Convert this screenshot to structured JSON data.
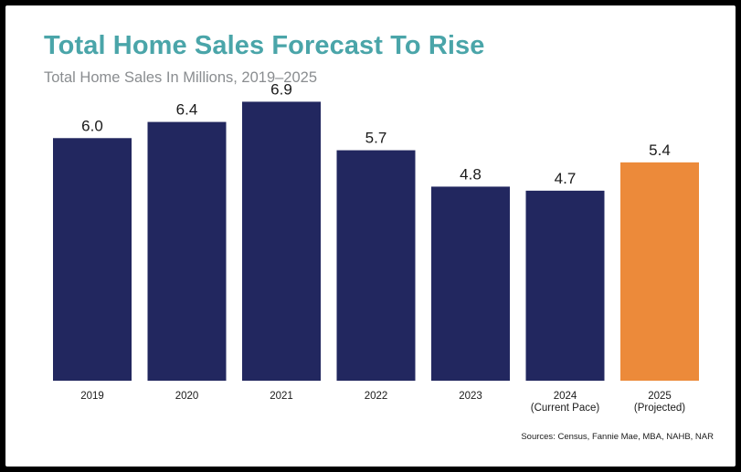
{
  "chart_data": {
    "type": "bar",
    "title": "Total Home Sales Forecast To Rise",
    "subtitle": "Total Home Sales In Millions, 2019–2025",
    "categories": [
      [
        "2019"
      ],
      [
        "2020"
      ],
      [
        "2021"
      ],
      [
        "2022"
      ],
      [
        "2023"
      ],
      [
        "2024",
        "(Current Pace)"
      ],
      [
        "2025",
        "(Projected)"
      ]
    ],
    "values": [
      6.0,
      6.4,
      6.9,
      5.7,
      4.8,
      4.7,
      5.4
    ],
    "value_labels": [
      "6.0",
      "6.4",
      "6.9",
      "5.7",
      "4.8",
      "4.7",
      "5.4"
    ],
    "bar_kinds": [
      "actual",
      "actual",
      "actual",
      "actual",
      "actual",
      "actual",
      "projected"
    ],
    "colors": {
      "actual": "#22275f",
      "projected": "#ec8a3a"
    },
    "ylim": [
      0,
      7.0
    ],
    "xlabel": "",
    "ylabel": "",
    "grid": false,
    "legend": "none",
    "source": "Sources: Census, Fannie Mae, MBA, NAHB, NAR"
  }
}
